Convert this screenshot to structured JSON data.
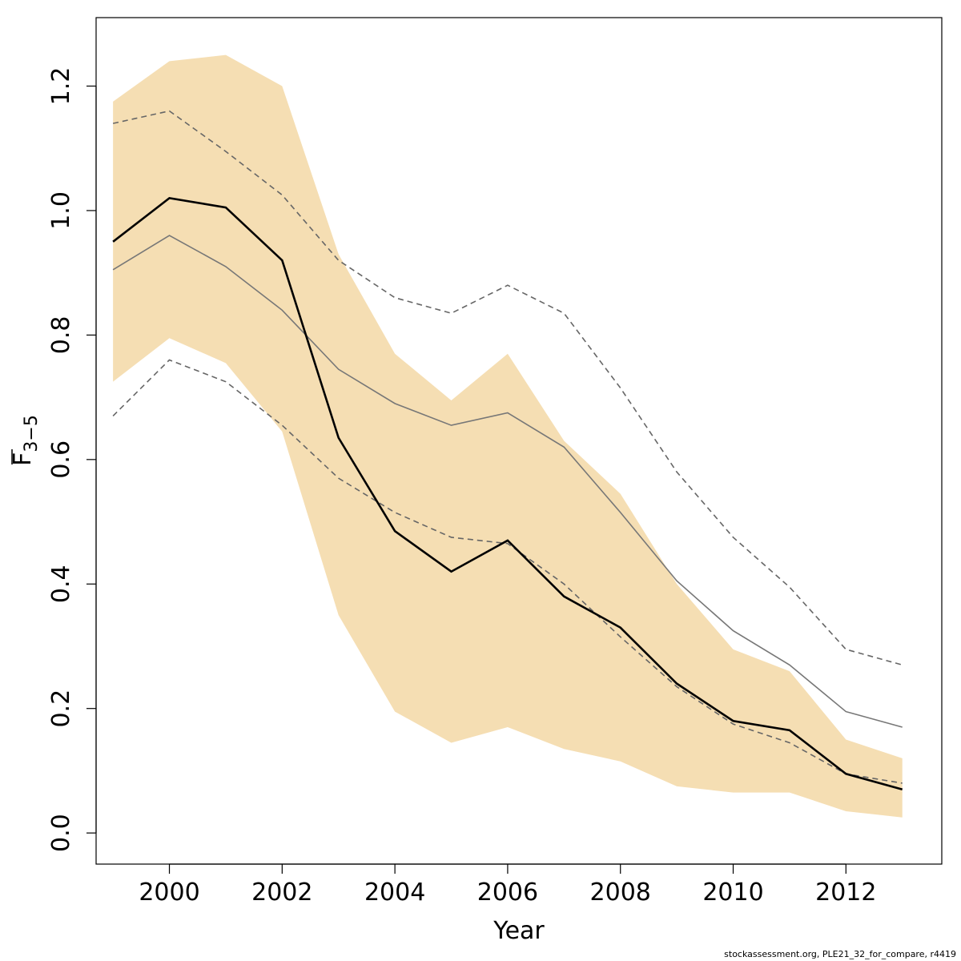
{
  "chart_data": {
    "type": "line",
    "xlabel": "Year",
    "ylabel": "F",
    "ylabel_subscript": "3−5",
    "xlim": [
      1998.7,
      2013.7
    ],
    "ylim": [
      -0.05,
      1.31
    ],
    "x_ticks": [
      2000,
      2002,
      2004,
      2006,
      2008,
      2010,
      2012
    ],
    "x_tick_labels": [
      "2000",
      "2002",
      "2004",
      "2006",
      "2008",
      "2010",
      "2012"
    ],
    "y_ticks": [
      0.0,
      0.2,
      0.4,
      0.6,
      0.8,
      1.0,
      1.2
    ],
    "y_tick_labels": [
      "0.0",
      "0.2",
      "0.4",
      "0.6",
      "0.8",
      "1.0",
      "1.2"
    ],
    "grid": false,
    "band_color": "#f5deb3",
    "x": [
      1999,
      2000,
      2001,
      2002,
      2003,
      2004,
      2005,
      2006,
      2007,
      2008,
      2009,
      2010,
      2011,
      2012,
      2013
    ],
    "band_upper": [
      1.175,
      1.24,
      1.25,
      1.2,
      0.93,
      0.77,
      0.695,
      0.77,
      0.63,
      0.545,
      0.4,
      0.295,
      0.26,
      0.15,
      0.12
    ],
    "band_lower": [
      0.725,
      0.795,
      0.755,
      0.645,
      0.35,
      0.195,
      0.145,
      0.17,
      0.135,
      0.115,
      0.075,
      0.065,
      0.065,
      0.035,
      0.025
    ],
    "series": [
      {
        "style": "solid-black",
        "color": "#000000",
        "values": [
          0.95,
          1.02,
          1.005,
          0.92,
          0.635,
          0.485,
          0.42,
          0.47,
          0.38,
          0.33,
          0.24,
          0.18,
          0.165,
          0.095,
          0.07
        ]
      },
      {
        "style": "solid-grey",
        "color": "#777777",
        "values": [
          0.905,
          0.96,
          0.91,
          0.84,
          0.745,
          0.69,
          0.655,
          0.675,
          0.62,
          0.515,
          0.405,
          0.325,
          0.27,
          0.195,
          0.17
        ]
      },
      {
        "style": "dashed-grey-upper",
        "color": "#666666",
        "values": [
          1.14,
          1.16,
          1.095,
          1.025,
          0.92,
          0.86,
          0.835,
          0.88,
          0.835,
          0.715,
          0.58,
          0.475,
          0.395,
          0.295,
          0.27
        ]
      },
      {
        "style": "dashed-grey-lower",
        "color": "#666666",
        "values": [
          0.67,
          0.76,
          0.725,
          0.655,
          0.57,
          0.515,
          0.475,
          0.465,
          0.4,
          0.315,
          0.235,
          0.175,
          0.145,
          0.095,
          0.08
        ]
      }
    ]
  },
  "footer": "stockassessment.org, PLE21_32_for_compare, r4419"
}
